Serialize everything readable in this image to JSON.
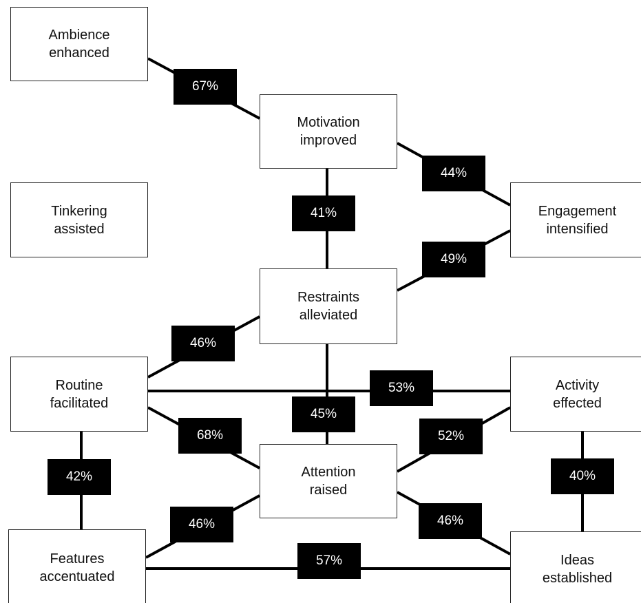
{
  "nodes": [
    {
      "lines": [
        "Ambience",
        "enhanced"
      ]
    },
    {
      "lines": [
        "Motivation",
        "improved"
      ]
    },
    {
      "lines": [
        "Tinkering",
        "assisted"
      ]
    },
    {
      "lines": [
        "Engagement",
        "intensified"
      ]
    },
    {
      "lines": [
        "Restraints",
        "alleviated"
      ]
    },
    {
      "lines": [
        "Routine",
        "facilitated"
      ]
    },
    {
      "lines": [
        "Activity",
        "effected"
      ]
    },
    {
      "lines": [
        "Attention",
        "raised"
      ]
    },
    {
      "lines": [
        "Features",
        "accentuated"
      ]
    },
    {
      "lines": [
        "Ideas",
        "established"
      ]
    }
  ],
  "edges": [
    {
      "label": "67%"
    },
    {
      "label": "44%"
    },
    {
      "label": "41%"
    },
    {
      "label": "49%"
    },
    {
      "label": "46%"
    },
    {
      "label": "45%"
    },
    {
      "label": "53%"
    },
    {
      "label": "68%"
    },
    {
      "label": "52%"
    },
    {
      "label": "42%"
    },
    {
      "label": "40%"
    },
    {
      "label": "46%"
    },
    {
      "label": "46%"
    },
    {
      "label": "57%"
    }
  ]
}
